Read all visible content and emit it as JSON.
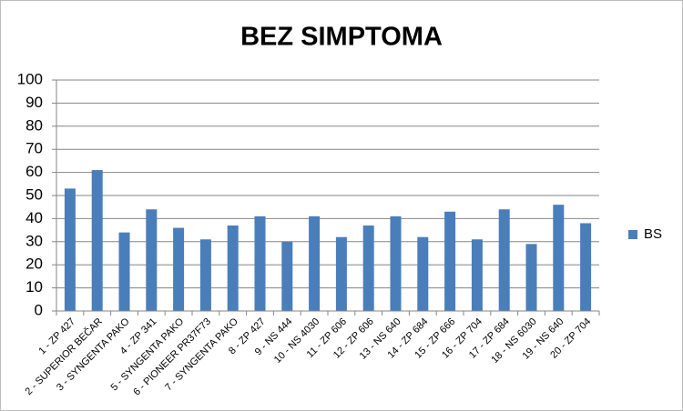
{
  "chart_data": {
    "type": "bar",
    "title": "BEZ SIMPTOMA",
    "categories": [
      "1 - ZP 427",
      "2 - SUPERIOR BEČAR",
      "3 - SYNGENTA PAKO",
      "4 - ZP 341",
      "5 - SYNGENTA PAKO",
      "6 - PIONEER PR37F73",
      "7 - SYNGENTA PAKO",
      "8 - ZP 427",
      "9 - NS 444",
      "10 - NS 4030",
      "11 - ZP 606",
      "12 - ZP 606",
      "13 - NS 640",
      "14 - ZP 684",
      "15 - ZP 666",
      "16 - ZP 704",
      "17 - ZP 684",
      "18 - NS 6030",
      "19 - NS 640",
      "20 - ZP 704"
    ],
    "series": [
      {
        "name": "BS",
        "color": "#4a7ebb",
        "values": [
          53,
          61,
          34,
          44,
          36,
          31,
          37,
          41,
          30,
          41,
          32,
          37,
          41,
          32,
          43,
          31,
          44,
          29,
          46,
          38
        ]
      }
    ],
    "ylim": [
      0,
      100
    ],
    "yticks": [
      0,
      10,
      20,
      30,
      40,
      50,
      60,
      70,
      80,
      90,
      100
    ],
    "grid": true,
    "legend": "right"
  }
}
